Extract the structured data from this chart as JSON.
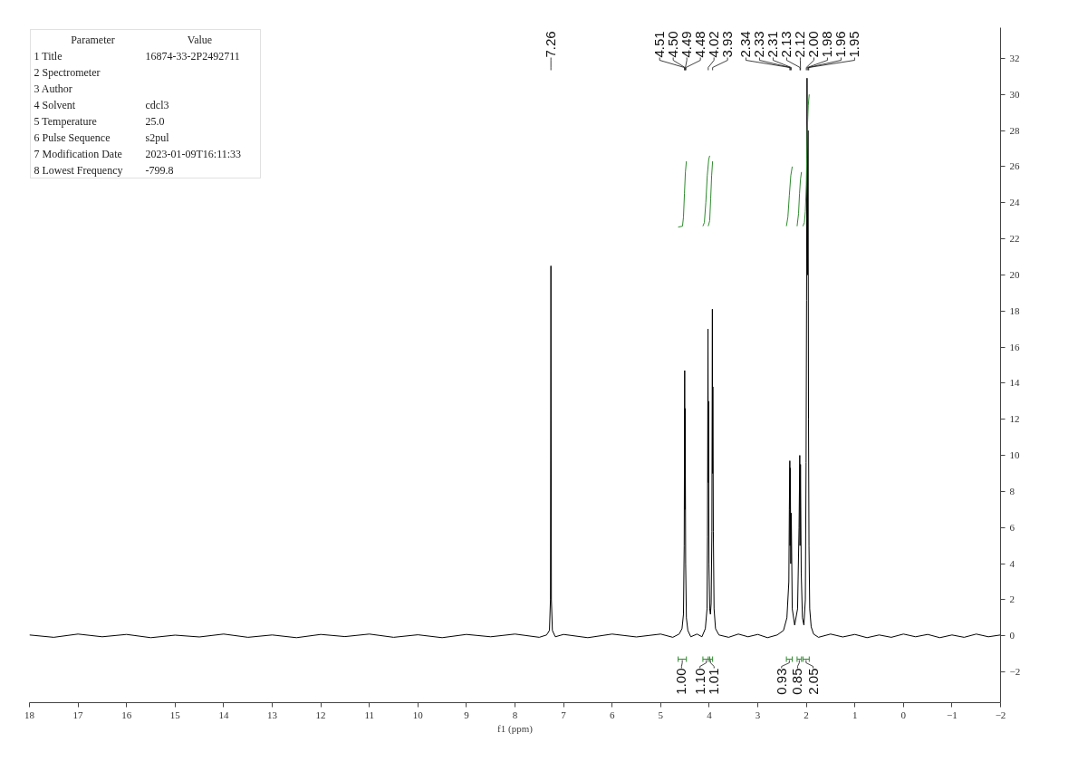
{
  "chart_data": {
    "type": "line",
    "xlabel": "f1 (ppm)",
    "xlim": [
      18,
      -2
    ],
    "xticks": [
      18,
      17,
      16,
      15,
      14,
      13,
      12,
      11,
      10,
      9,
      8,
      7,
      6,
      5,
      4,
      3,
      2,
      1,
      0,
      {
        "value": -1,
        "label": "−1"
      },
      {
        "value": -2,
        "label": "−2"
      }
    ],
    "ylim": [
      -3.7,
      33.7
    ],
    "yticks": [
      {
        "value": -2,
        "label": "−2"
      },
      0,
      2,
      4,
      6,
      8,
      10,
      12,
      14,
      16,
      18,
      20,
      22,
      24,
      26,
      28,
      30,
      32
    ],
    "grid": false,
    "line_style": "solid",
    "series": [
      {
        "color": "#000000",
        "x": [
          18,
          17.5,
          17,
          16.5,
          16,
          15.5,
          15,
          14.5,
          14,
          13.5,
          13,
          12.5,
          12,
          11.5,
          11,
          10.5,
          10,
          9.5,
          9,
          8.5,
          8,
          7.5,
          7.35,
          7.29,
          7.27,
          7.26,
          7.25,
          7.23,
          7.17,
          7.0,
          6.5,
          6.0,
          5.5,
          5.0,
          4.75,
          4.62,
          4.56,
          4.53,
          4.515,
          4.505,
          4.5,
          4.495,
          4.485,
          4.47,
          4.44,
          4.38,
          4.25,
          4.15,
          4.08,
          4.045,
          4.035,
          4.025,
          4.02,
          4.015,
          4.005,
          3.99,
          3.975,
          3.96,
          3.945,
          3.935,
          3.93,
          3.925,
          3.915,
          3.9,
          3.87,
          3.8,
          3.6,
          3.4,
          3.2,
          3.0,
          2.8,
          2.6,
          2.47,
          2.4,
          2.36,
          2.35,
          2.34,
          2.335,
          2.33,
          2.32,
          2.31,
          2.29,
          2.24,
          2.18,
          2.15,
          2.135,
          2.13,
          2.12,
          2.105,
          2.08,
          2.05,
          2.02,
          2.005,
          1.995,
          1.985,
          1.975,
          1.965,
          1.955,
          1.945,
          1.93,
          1.9,
          1.85,
          1.75,
          1.5,
          1.25,
          1.0,
          0.75,
          0.5,
          0.25,
          0,
          -0.25,
          -0.5,
          -0.75,
          -1,
          -1.25,
          -1.5,
          -1.75,
          -2
        ],
        "values": [
          0.05,
          -0.08,
          0.1,
          -0.05,
          0.08,
          -0.1,
          0.04,
          -0.06,
          0.1,
          -0.08,
          0.05,
          -0.1,
          0.08,
          -0.04,
          0.1,
          -0.08,
          0.06,
          -0.1,
          0.08,
          -0.05,
          0.1,
          -0.08,
          0.05,
          0.3,
          2.0,
          20.5,
          2.0,
          0.3,
          -0.05,
          0.08,
          -0.1,
          0.1,
          -0.06,
          0.1,
          -0.08,
          0.1,
          0.4,
          1.2,
          5.0,
          14.7,
          7.0,
          12.6,
          4.0,
          1.0,
          0.3,
          -0.05,
          0.1,
          -0.05,
          0.4,
          1.5,
          5.5,
          17.0,
          8.5,
          13.0,
          4.0,
          1.5,
          1.2,
          1.8,
          5.8,
          18.1,
          9.0,
          13.8,
          5.8,
          1.5,
          0.4,
          0.05,
          -0.08,
          0.1,
          -0.05,
          0.08,
          -0.1,
          0.05,
          0.3,
          1.0,
          3.0,
          7.0,
          9.7,
          5.0,
          9.3,
          4.0,
          6.8,
          1.5,
          0.6,
          1.5,
          6.0,
          10.0,
          5.0,
          9.5,
          3.5,
          1.0,
          0.6,
          2.0,
          9.6,
          18.6,
          30.9,
          20.0,
          28.0,
          12.0,
          5.0,
          1.5,
          0.5,
          0.1,
          -0.08,
          0.1,
          -0.06,
          0.08,
          -0.1,
          0.05,
          -0.08,
          0.1,
          -0.05,
          0.08,
          -0.1,
          0.05,
          -0.08,
          0.1,
          -0.05,
          0.05
        ]
      },
      {
        "color": "#2e8b2e",
        "x": [
          4.64,
          4.55,
          4.53,
          4.51,
          4.49,
          4.47
        ],
        "values": [
          22.65,
          22.7,
          23.2,
          24.5,
          25.7,
          26.3
        ]
      },
      {
        "color": "#2e8b2e",
        "x": [
          4.13,
          4.1,
          4.07,
          4.04,
          4.01,
          3.99
        ],
        "values": [
          22.7,
          22.9,
          24.0,
          25.5,
          26.4,
          26.6
        ]
      },
      {
        "color": "#2e8b2e",
        "x": [
          4.02,
          3.99,
          3.97,
          3.95,
          3.93
        ],
        "values": [
          22.7,
          23.0,
          24.2,
          25.5,
          26.3
        ]
      },
      {
        "color": "#2e8b2e",
        "x": [
          2.41,
          2.38,
          2.35,
          2.32,
          2.29
        ],
        "values": [
          22.7,
          23.2,
          24.4,
          25.5,
          26.0
        ]
      },
      {
        "color": "#2e8b2e",
        "x": [
          2.19,
          2.16,
          2.14,
          2.12,
          2.1
        ],
        "values": [
          22.7,
          23.4,
          24.5,
          25.3,
          25.7
        ]
      },
      {
        "color": "#2e8b2e",
        "x": [
          2.07,
          2.04,
          2.02,
          2.0,
          1.99,
          1.98,
          1.96,
          1.94
        ],
        "values": [
          22.7,
          22.9,
          23.5,
          25.0,
          26.5,
          28.0,
          29.4,
          30.0
        ]
      }
    ],
    "annotations": [
      "Parameter\tValue",
      "1 Title\t16874-33-2P2492711",
      "2 Spectrometer",
      "3 Author",
      "4 Solvent\tcdcl3",
      "5 Temperature\t25.0",
      "6 Pulse Sequence\ts2pul",
      "7 Modification Date\t2023-01-09T16:11:33",
      "8 Lowest Frequency\t-799.8",
      {
        "text": "7.26",
        "x": 7.26
      },
      {
        "text": "4.51",
        "x": 4.51
      },
      {
        "text": "4.50",
        "x": 4.5
      },
      {
        "text": "4.49",
        "x": 4.49
      },
      {
        "text": "4.48",
        "x": 4.48
      },
      {
        "text": "4.02",
        "x": 4.02
      },
      {
        "text": "3.93",
        "x": 3.93
      },
      {
        "text": "2.34",
        "x": 2.34
      },
      {
        "text": "2.33",
        "x": 2.33
      },
      {
        "text": "2.31",
        "x": 2.31
      },
      {
        "text": "2.13",
        "x": 2.13
      },
      {
        "text": "2.12",
        "x": 2.12
      },
      {
        "text": "2.00",
        "x": 2.0
      },
      {
        "text": "1.98",
        "x": 1.98
      },
      {
        "text": "1.96",
        "x": 1.96
      },
      {
        "text": "1.95",
        "x": 1.95
      },
      {
        "text": "1.00",
        "x": 4.57
      },
      {
        "text": "1.10",
        "x": 4.19
      },
      {
        "text": "1.01",
        "x": 3.9
      },
      {
        "text": "0.93",
        "x": 2.51
      },
      {
        "text": "0.85",
        "x": 2.18
      },
      {
        "text": "2.05",
        "x": 1.86
      }
    ]
  }
}
